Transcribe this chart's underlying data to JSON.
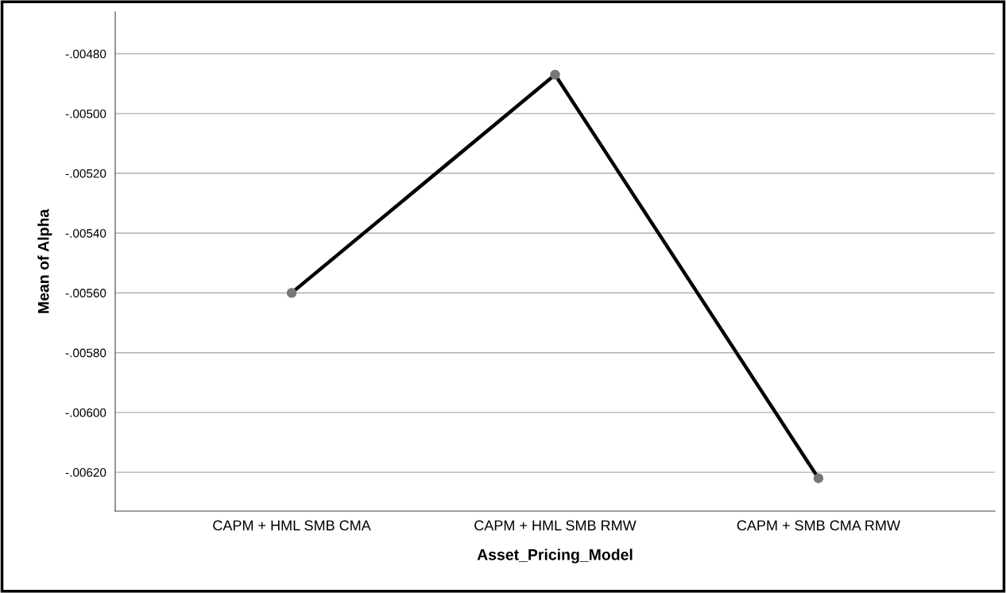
{
  "chart_data": {
    "type": "line",
    "xlabel": "Asset_Pricing_Model",
    "ylabel": "Mean of Alpha",
    "categories": [
      "CAPM + HML SMB CMA",
      "CAPM + HML SMB RMW",
      "CAPM + SMB CMA RMW"
    ],
    "series": [
      {
        "color": "#000000",
        "values": [
          -0.0056,
          -0.00487,
          -0.00622
        ]
      }
    ],
    "marker": "circle",
    "line_style": "solid",
    "grid": "y",
    "ylim": [
      -0.00633,
      -0.00466
    ],
    "yticks": [
      {
        "value": -0.0062,
        "label": "-.00620"
      },
      {
        "value": -0.006,
        "label": "-.00600"
      },
      {
        "value": -0.0058,
        "label": "-.00580"
      },
      {
        "value": -0.0056,
        "label": "-.00560"
      },
      {
        "value": -0.0054,
        "label": "-.00540"
      },
      {
        "value": -0.0052,
        "label": "-.00520"
      },
      {
        "value": -0.005,
        "label": "-.00500"
      },
      {
        "value": -0.0048,
        "label": "-.00480"
      }
    ]
  }
}
